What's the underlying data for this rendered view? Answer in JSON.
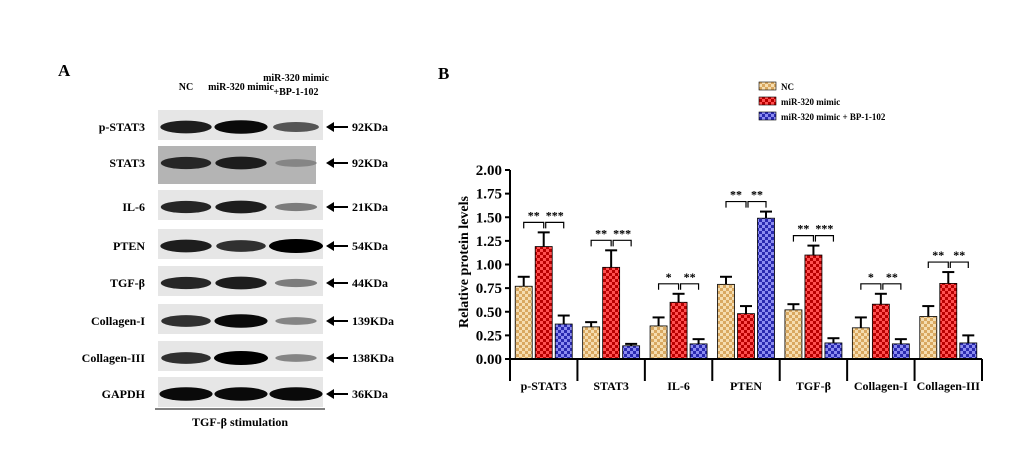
{
  "panel_a": {
    "letter": "A",
    "lanes": [
      "NC",
      "miR-320 mimic",
      "miR-320 mimic",
      "+BP-1-102"
    ],
    "blots": [
      {
        "label": "p-STAT3",
        "size": "92KDa",
        "intensities": [
          0.85,
          0.95,
          0.55
        ]
      },
      {
        "label": "STAT3",
        "size": "92KDa",
        "intensities": [
          0.8,
          0.85,
          0.3
        ]
      },
      {
        "label": "IL-6",
        "size": "21KDa",
        "intensities": [
          0.8,
          0.85,
          0.35
        ]
      },
      {
        "label": "PTEN",
        "size": "54KDa",
        "intensities": [
          0.85,
          0.75,
          1.0
        ]
      },
      {
        "label": "TGF-β",
        "size": "44KDa",
        "intensities": [
          0.8,
          0.85,
          0.35
        ]
      },
      {
        "label": "Collagen-I",
        "size": "139KDa",
        "intensities": [
          0.75,
          0.95,
          0.3
        ]
      },
      {
        "label": "Collagen-III",
        "size": "138KDa",
        "intensities": [
          0.75,
          1.0,
          0.3
        ]
      },
      {
        "label": "GAPDH",
        "size": "36KDa",
        "intensities": [
          0.95,
          0.95,
          0.95
        ]
      }
    ],
    "footer": "TGF-β stimulation"
  },
  "chart_data": {
    "letter": "B",
    "type": "bar",
    "ylabel": "Relative protein levels",
    "ylim": [
      0,
      2.0
    ],
    "yticks": [
      "0.00",
      "0.25",
      "0.50",
      "0.75",
      "1.00",
      "1.25",
      "1.50",
      "1.75",
      "2.00"
    ],
    "categories": [
      "p-STAT3",
      "STAT3",
      "IL-6",
      "PTEN",
      "TGF-β",
      "Collagen-I",
      "Collagen-III"
    ],
    "legend_position": "top-right",
    "series": [
      {
        "name": "NC",
        "color": "#f0d090",
        "values": [
          0.77,
          0.34,
          0.35,
          0.79,
          0.52,
          0.33,
          0.45
        ],
        "errors": [
          0.1,
          0.05,
          0.09,
          0.08,
          0.06,
          0.11,
          0.11
        ]
      },
      {
        "name": "miR-320 mimic",
        "color": "#d42020",
        "values": [
          1.19,
          0.97,
          0.6,
          0.48,
          1.1,
          0.58,
          0.8
        ],
        "errors": [
          0.15,
          0.18,
          0.09,
          0.08,
          0.1,
          0.11,
          0.12
        ]
      },
      {
        "name": "miR-320 mimic + BP-1-102",
        "color": "#4848d0",
        "values": [
          0.37,
          0.14,
          0.16,
          1.49,
          0.17,
          0.16,
          0.17
        ],
        "errors": [
          0.09,
          0.02,
          0.05,
          0.07,
          0.05,
          0.05,
          0.08
        ]
      }
    ],
    "significance": [
      {
        "left": "**",
        "right": "***"
      },
      {
        "left": "**",
        "right": "***"
      },
      {
        "left": "*",
        "right": "**"
      },
      {
        "left": "**",
        "right": "**"
      },
      {
        "left": "**",
        "right": "***"
      },
      {
        "left": "*",
        "right": "**"
      },
      {
        "left": "**",
        "right": "**"
      }
    ]
  }
}
